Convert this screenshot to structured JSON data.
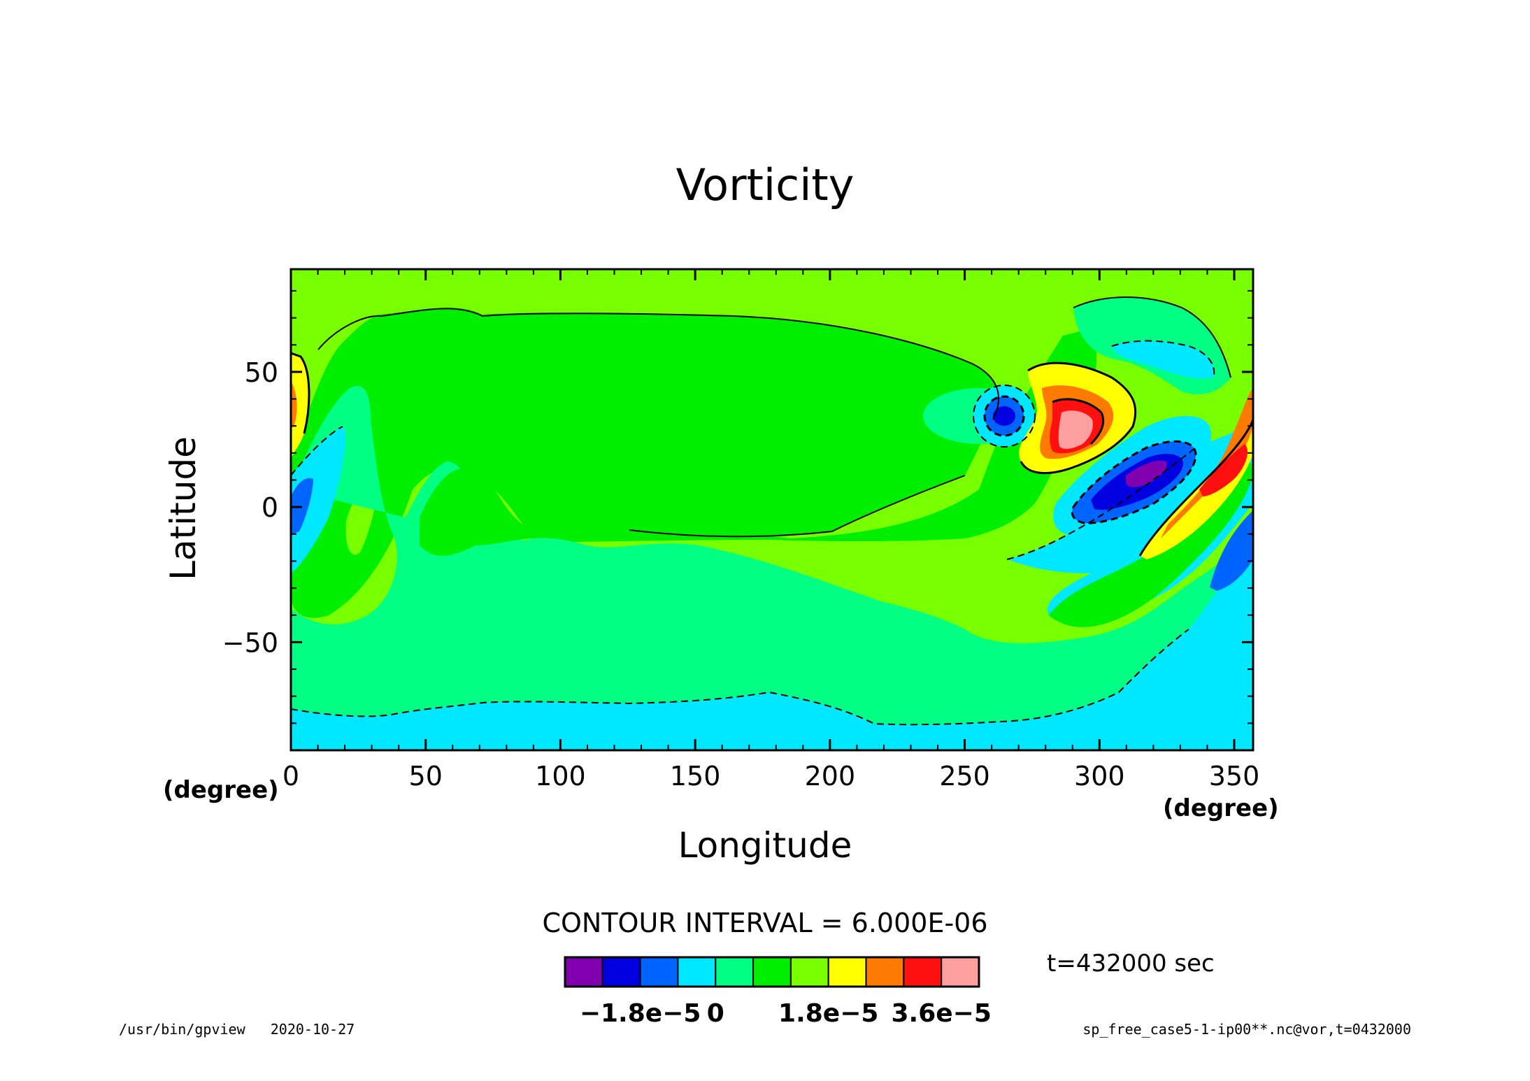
{
  "chart_data": {
    "type": "contour",
    "title": "Vorticity",
    "xlabel": "Longitude",
    "ylabel": "Latitude",
    "x_unit": "(degree)",
    "y_unit": "(degree)",
    "xlim": [
      0,
      357
    ],
    "ylim": [
      -90,
      88
    ],
    "x_ticks": [
      0,
      50,
      100,
      150,
      200,
      250,
      300,
      350
    ],
    "y_ticks": [
      -50,
      0,
      50
    ],
    "contour_interval_label": "CONTOUR INTERVAL = 6.000E-06",
    "colorbar": {
      "colors": [
        "#8000b0",
        "#0000e0",
        "#0064ff",
        "#00e8ff",
        "#00ff82",
        "#00ee00",
        "#78ff00",
        "#ffff00",
        "#ff7a00",
        "#ff1010",
        "#ffa0a0"
      ],
      "tick_labels": [
        "-1.8e-5",
        "0",
        "1.8e-5",
        "3.6e-5"
      ],
      "tick_boundary_index": [
        2,
        4,
        7,
        10
      ]
    }
  },
  "time_label": "t=432000 sec",
  "footer": {
    "left": "/usr/bin/gpview   2020-10-27",
    "right": "sp_free_case5-1-ip00**.nc@vor,t=0432000"
  }
}
